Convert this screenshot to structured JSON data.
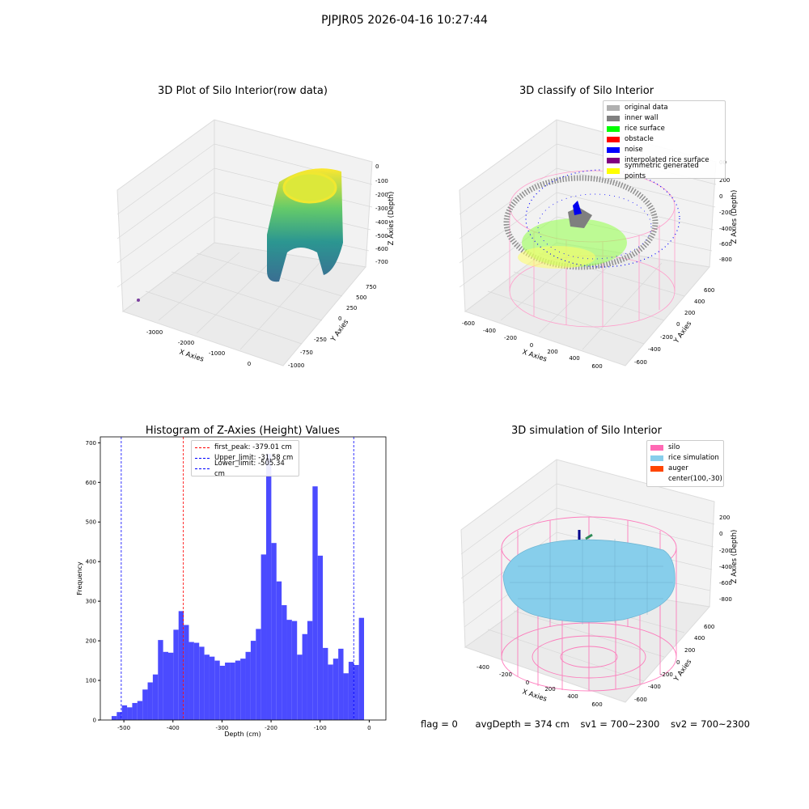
{
  "suptitle": "PJPJR05 2026-04-16 10:27:44",
  "footer": {
    "flag": "flag = 0",
    "avg_depth": "avgDepth = 374 cm",
    "sv1": "sv1 = 700~2300",
    "sv2": "sv2 = 700~2300"
  },
  "chart_data": [
    {
      "type": "scatter",
      "title": "3D Plot of Silo Interior(row data)",
      "xlabel": "X Axies",
      "ylabel": "Y Axies",
      "zlabel": "Z Axies (Depth)",
      "x_ticks": [
        "-3000",
        "-2000",
        "-1000",
        "0"
      ],
      "y_ticks": [
        "-1000",
        "-750",
        "-250",
        "0",
        "250",
        "500",
        "750"
      ],
      "z_ticks": [
        "0",
        "-100",
        "-200",
        "-300",
        "-400",
        "-500",
        "-600",
        "-700"
      ],
      "colormap": [
        "#440154",
        "#31688e",
        "#35b779",
        "#fde725"
      ]
    },
    {
      "type": "scatter",
      "title": "3D classify of Silo Interior",
      "xlabel": "X Axies",
      "ylabel": "Y Axies",
      "zlabel": "Z Axies (Depth)",
      "x_ticks": [
        "-600",
        "-400",
        "-200",
        "0",
        "200",
        "400",
        "600"
      ],
      "y_ticks": [
        "-600",
        "-400",
        "-200",
        "0",
        "200",
        "400",
        "600"
      ],
      "z_ticks": [
        "200",
        "0",
        "-200",
        "-400",
        "-600",
        "-800"
      ],
      "z_top_tick": "00",
      "legend": [
        {
          "label": "original data",
          "color": "#b0b0b0"
        },
        {
          "label": "inner wall",
          "color": "#808080"
        },
        {
          "label": "rice surface",
          "color": "#00ff00"
        },
        {
          "label": "obstacle",
          "color": "#ff0000"
        },
        {
          "label": "noise",
          "color": "#0000ff"
        },
        {
          "label": "interpolated rice surface",
          "color": "#800080"
        },
        {
          "label": "symmetric generated points",
          "color": "#ffff00"
        }
      ]
    },
    {
      "type": "bar",
      "title": "Histogram of Z-Axies (Height) Values",
      "xlabel": "Depth (cm)",
      "ylabel": "Frequency",
      "xlim": [
        -548,
        34
      ],
      "ylim": [
        0,
        715
      ],
      "x_ticks": [
        -500,
        -400,
        -300,
        -200,
        -100,
        0
      ],
      "y_ticks": [
        0,
        100,
        200,
        300,
        400,
        500,
        600,
        700
      ],
      "bar_color": "#4b4bff",
      "bin_start": -525,
      "bin_width": 10.5,
      "values": [
        10,
        20,
        37,
        32,
        43,
        48,
        77,
        95,
        115,
        202,
        172,
        170,
        228,
        275,
        240,
        197,
        195,
        185,
        165,
        160,
        150,
        137,
        145,
        145,
        150,
        155,
        172,
        200,
        230,
        418,
        672,
        447,
        350,
        290,
        253,
        250,
        165,
        217,
        250,
        590,
        415,
        182,
        140,
        155,
        180,
        118,
        147,
        139,
        258
      ],
      "vlines": [
        {
          "label": "first_peak: -379.01 cm",
          "x": -379.01,
          "color": "#ff0000"
        },
        {
          "label": "Upper_limit: -31.58 cm",
          "x": -31.58,
          "color": "#0000ff"
        },
        {
          "label": "Lower_limit: -505.34 cm",
          "x": -505.34,
          "color": "#0000ff"
        }
      ]
    },
    {
      "type": "scatter",
      "title": "3D simulation of Silo Interior",
      "xlabel": "X Axies",
      "ylabel": "Y Axies",
      "zlabel": "Z Axies (Depth)",
      "x_ticks": [
        "-400",
        "-200",
        "0",
        "200",
        "400",
        "600"
      ],
      "y_ticks": [
        "-600",
        "-400",
        "-200",
        "0",
        "200",
        "400",
        "600"
      ],
      "z_ticks": [
        "200",
        "0",
        "-200",
        "-400",
        "-600",
        "-800"
      ],
      "legend": [
        {
          "label": "silo",
          "color": "#ff69b4"
        },
        {
          "label": "rice simulation",
          "color": "#87ceeb"
        },
        {
          "label": "auger",
          "color": "#ff4500"
        },
        {
          "label": "center(100,-30)",
          "color": ""
        }
      ]
    }
  ]
}
